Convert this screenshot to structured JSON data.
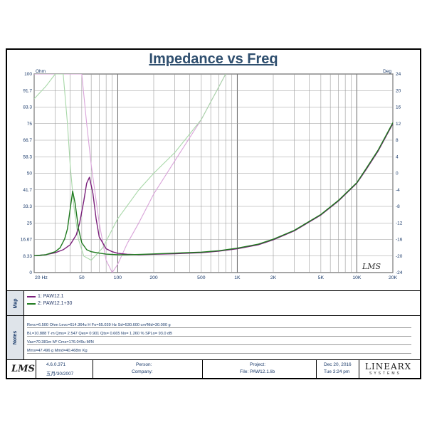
{
  "chart_data": {
    "type": "line",
    "title": "Impedance vs Freq",
    "y_left_label": "Ohm",
    "y_right_label": "Deg",
    "x_scale": "log",
    "xlim": [
      20,
      20000
    ],
    "ylim_left": [
      0,
      100
    ],
    "ylim_right": [
      -24,
      24
    ],
    "x_ticks": [
      "20 Hz",
      "50",
      "100",
      "200",
      "500",
      "1K",
      "2K",
      "5K",
      "10K",
      "20K"
    ],
    "x_tick_values": [
      20,
      50,
      100,
      200,
      500,
      1000,
      2000,
      5000,
      10000,
      20000
    ],
    "y_left_ticks": [
      "100",
      "91.7",
      "83.3",
      "75",
      "66.7",
      "58.3",
      "50",
      "41.7",
      "33.3",
      "25",
      "16.67",
      "8.33",
      "0"
    ],
    "y_right_ticks": [
      "24",
      "20",
      "16",
      "12",
      "8",
      "4",
      "0",
      "-4",
      "-8",
      "-12",
      "-16",
      "-20",
      "-24"
    ],
    "grid": true,
    "series": [
      {
        "name": "1: PAW12.1",
        "kind": "impedance",
        "color": "#7a1f7a",
        "x": [
          20,
          25,
          30,
          35,
          40,
          45,
          48,
          52,
          55,
          58,
          62,
          66,
          70,
          80,
          90,
          100,
          120,
          150,
          200,
          300,
          500,
          700,
          1000,
          1500,
          2000,
          3000,
          5000,
          7000,
          10000,
          12000,
          15000,
          20000
        ],
        "y": [
          8.5,
          9.0,
          10.0,
          11.5,
          14.0,
          19.0,
          25.0,
          36.0,
          45.0,
          48.0,
          40.0,
          27.0,
          18.0,
          12.0,
          10.5,
          9.7,
          9.2,
          9.0,
          9.2,
          9.5,
          10.0,
          10.8,
          12.0,
          14.0,
          16.5,
          21.0,
          29.0,
          36.0,
          45.0,
          52.0,
          61.0,
          75.0
        ]
      },
      {
        "name": "2: PAW12.1+30",
        "kind": "impedance",
        "color": "#1f7a1f",
        "x": [
          20,
          25,
          30,
          33,
          36,
          38,
          40,
          42,
          44,
          47,
          50,
          55,
          60,
          70,
          80,
          100,
          120,
          150,
          200,
          300,
          500,
          700,
          1000,
          1500,
          2000,
          3000,
          5000,
          7000,
          10000,
          12000,
          15000,
          20000
        ],
        "y": [
          8.5,
          9.0,
          10.5,
          12.5,
          17.0,
          22.0,
          32.0,
          41.0,
          35.0,
          22.0,
          15.0,
          11.5,
          10.5,
          9.8,
          9.3,
          9.0,
          9.0,
          9.1,
          9.4,
          9.8,
          10.3,
          11.0,
          12.3,
          14.3,
          16.8,
          21.3,
          29.3,
          36.3,
          45.3,
          52.5,
          61.5,
          75.5
        ]
      },
      {
        "name": "1: PAW12.1",
        "kind": "phase",
        "color": "#d9a3d9",
        "x": [
          20,
          30,
          40,
          50,
          55,
          60,
          70,
          80,
          90,
          100,
          120,
          150,
          200,
          300,
          500,
          800
        ],
        "y": [
          24,
          24,
          24,
          24,
          12,
          2,
          -12,
          -21,
          -24,
          -22,
          -17,
          -12,
          -5,
          3,
          13,
          24
        ]
      },
      {
        "name": "2: PAW12.1+30",
        "kind": "phase",
        "color": "#a8d8a8",
        "x": [
          20,
          25,
          30,
          35,
          38,
          40,
          43,
          47,
          52,
          60,
          75,
          100,
          150,
          200,
          300,
          500,
          800
        ],
        "y": [
          18,
          21,
          24,
          24,
          12,
          2,
          -8,
          -16,
          -20,
          -21,
          -18,
          -11,
          -4,
          0,
          5,
          13,
          24
        ]
      }
    ]
  },
  "legend_section": {
    "label": "Map",
    "items": [
      {
        "label": "1: PAW12.1",
        "color": "#7a1f7a"
      },
      {
        "label": "2: PAW12.1+30",
        "color": "#1f7a1f"
      }
    ]
  },
  "notes_section": {
    "label": "Notes",
    "lines": [
      "Revc=6.500 Ohm  Levc=614.364u H  Fo=55.039 Hz  Sd=530.600 cm²Md=30.000 g",
      "BL=10.888 T·m  Qms= 2.547  Qes= 0.901  Qts= 0.665  No= 1.260 %  SPLo= 93.0 dB",
      "Vas=70.381m M³ Cms=176.049u M/N",
      "Mms=47.496 g  Mmd=40.468m Kg"
    ]
  },
  "footer": {
    "logo_text": "LMS",
    "version": "4.6.0.371",
    "date_local": "五月/30/2007",
    "person_label": "Person:",
    "company_label": "Company:",
    "project_label": "Project:",
    "file_label": "File: PAW12.1.lib",
    "date": "Dec 20, 2016",
    "time": "Tue  3:24 pm",
    "brand_name": "LINEARX",
    "brand_sub": "SYSTEMS"
  },
  "watermark": "LMS"
}
